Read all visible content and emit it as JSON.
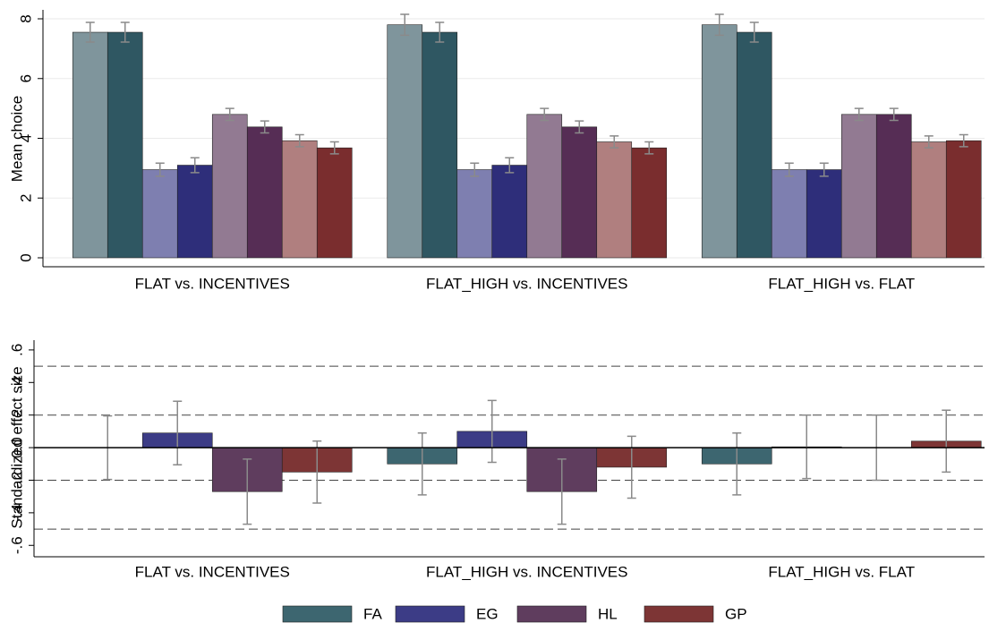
{
  "chart_data": [
    {
      "type": "bar",
      "y_label": "Mean choice",
      "categories": [
        "FLAT vs. INCENTIVES",
        "FLAT_HIGH vs. INCENTIVES",
        "FLAT_HIGH vs. FLAT"
      ],
      "ylim": [
        -0.3,
        8.3
      ],
      "yticks": [
        0,
        2,
        4,
        6,
        8
      ],
      "grid": true,
      "error_color": "#8a8a8a",
      "series": [
        {
          "color": "#7f959c",
          "values": [
            7.55,
            7.8,
            7.8
          ],
          "errors": [
            0.33,
            0.35,
            0.35
          ]
        },
        {
          "color": "#2f5762",
          "values": [
            7.55,
            7.55,
            7.55
          ],
          "errors": [
            0.33,
            0.33,
            0.33
          ]
        },
        {
          "color": "#7e7fb0",
          "values": [
            2.95,
            2.95,
            2.95
          ],
          "errors": [
            0.22,
            0.22,
            0.22
          ]
        },
        {
          "color": "#2e2e7a",
          "values": [
            3.1,
            3.1,
            2.95
          ],
          "errors": [
            0.25,
            0.25,
            0.22
          ]
        },
        {
          "color": "#927a92",
          "values": [
            4.8,
            4.8,
            4.8
          ],
          "errors": [
            0.2,
            0.2,
            0.2
          ]
        },
        {
          "color": "#562d55",
          "values": [
            4.38,
            4.38,
            4.8
          ],
          "errors": [
            0.2,
            0.2,
            0.2
          ]
        },
        {
          "color": "#b07f7f",
          "values": [
            3.92,
            3.88,
            3.88
          ],
          "errors": [
            0.2,
            0.2,
            0.2
          ]
        },
        {
          "color": "#7a2d2e",
          "values": [
            3.68,
            3.68,
            3.92
          ],
          "errors": [
            0.2,
            0.2,
            0.2
          ]
        }
      ]
    },
    {
      "type": "bar",
      "y_label": "Standardized effect size",
      "categories": [
        "FLAT vs. INCENTIVES",
        "FLAT_HIGH vs. INCENTIVES",
        "FLAT_HIGH vs. FLAT"
      ],
      "ylim": [
        -0.67,
        0.66
      ],
      "yticks": [
        {
          "value": -0.6,
          "label": "-.6"
        },
        {
          "value": -0.4,
          "label": "-.4"
        },
        {
          "value": -0.2,
          "label": "-.2"
        },
        {
          "value": 0,
          "label": "0.0"
        },
        {
          "value": 0.2,
          "label": ".2"
        },
        {
          "value": 0.4,
          "label": ".4"
        },
        {
          "value": 0.6,
          "label": ".6"
        }
      ],
      "grid": false,
      "reference_lines": [
        -0.5,
        -0.2,
        0.2,
        0.5
      ],
      "error_color": "#8a8a8a",
      "series": [
        {
          "name": "FA",
          "color": "#3d6670",
          "values": [
            0.0,
            -0.1,
            -0.1
          ],
          "errors": [
            0.195,
            0.19,
            0.19
          ]
        },
        {
          "name": "EG",
          "color": "#3c3c86",
          "values": [
            0.09,
            0.1,
            0.005
          ],
          "errors": [
            0.195,
            0.19,
            0.195
          ]
        },
        {
          "name": "HL",
          "color": "#5f3d5e",
          "values": [
            -0.27,
            -0.27,
            0.0
          ],
          "errors": [
            0.2,
            0.2,
            0.2
          ]
        },
        {
          "name": "GP",
          "color": "#7d3535",
          "values": [
            -0.15,
            -0.12,
            0.04
          ],
          "errors": [
            0.19,
            0.19,
            0.19
          ]
        }
      ]
    }
  ]
}
